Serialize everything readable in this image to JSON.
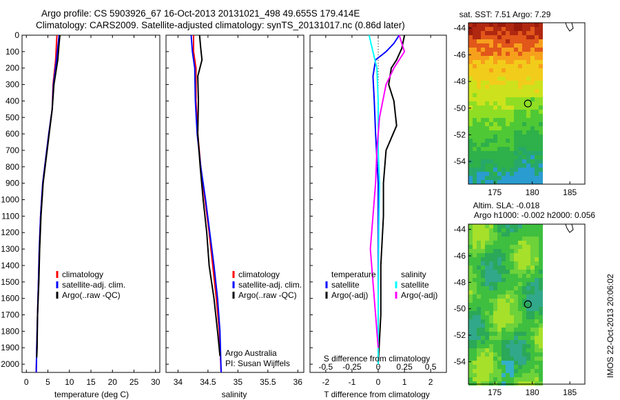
{
  "header": {
    "title_line1": "Argo profile: CS 5903926_67 16-Oct-2013 20131021_498 49.655S 179.414E",
    "title_line2": "Climatology: CARS2009. Satellite-adjusted climatology: synTS_20131017.nc (0.86d later)"
  },
  "chart_data": [
    {
      "type": "line",
      "name": "temperature-panel",
      "xlabel": "temperature (deg C)",
      "ylabel": "",
      "xlim": [
        -1,
        31
      ],
      "ylim": [
        2050,
        0
      ],
      "xticks": [
        "0",
        "5",
        "10",
        "15",
        "20",
        "25",
        "30"
      ],
      "yticks": [
        "0",
        "100",
        "200",
        "300",
        "400",
        "500",
        "600",
        "700",
        "800",
        "900",
        "1000",
        "1100",
        "1200",
        "1300",
        "1400",
        "1500",
        "1600",
        "1700",
        "1800",
        "1900",
        "2000"
      ],
      "legend": [
        {
          "label": "climatology",
          "color": "#ff0000"
        },
        {
          "label": "satellite-adj. clim.",
          "color": "#0000ff"
        },
        {
          "label": "Argo(..raw -QC)",
          "color": "#000000"
        }
      ],
      "series": [
        {
          "name": "climatology",
          "color": "#ff0000",
          "points": [
            [
              7.1,
              0
            ],
            [
              7.0,
              50
            ],
            [
              6.8,
              150
            ],
            [
              6.2,
              300
            ],
            [
              6.0,
              450
            ],
            [
              5.2,
              600
            ],
            [
              4.5,
              750
            ],
            [
              3.8,
              900
            ],
            [
              3.3,
              1100
            ],
            [
              3.0,
              1300
            ],
            [
              2.8,
              1500
            ],
            [
              2.6,
              1700
            ],
            [
              2.4,
              1900
            ],
            [
              2.3,
              2050
            ]
          ]
        },
        {
          "name": "satellite-adj. clim.",
          "color": "#0000ff",
          "points": [
            [
              7.6,
              0
            ],
            [
              7.4,
              50
            ],
            [
              7.0,
              150
            ],
            [
              6.3,
              300
            ],
            [
              6.0,
              450
            ],
            [
              5.2,
              600
            ],
            [
              4.5,
              750
            ],
            [
              3.8,
              900
            ],
            [
              3.3,
              1100
            ],
            [
              3.0,
              1300
            ],
            [
              2.8,
              1500
            ],
            [
              2.6,
              1700
            ],
            [
              2.4,
              1900
            ],
            [
              2.3,
              2050
            ]
          ]
        },
        {
          "name": "Argo(..raw -QC)",
          "color": "#000000",
          "points": [
            [
              7.8,
              0
            ],
            [
              7.6,
              50
            ],
            [
              7.3,
              150
            ],
            [
              6.4,
              300
            ],
            [
              6.0,
              450
            ],
            [
              5.3,
              600
            ],
            [
              4.6,
              750
            ],
            [
              3.9,
              900
            ],
            [
              3.4,
              1100
            ],
            [
              3.1,
              1300
            ],
            [
              2.9,
              1500
            ],
            [
              2.6,
              1700
            ],
            [
              2.5,
              1900
            ],
            [
              2.4,
              1960
            ]
          ]
        }
      ]
    },
    {
      "type": "line",
      "name": "salinity-panel",
      "xlabel": "salinity",
      "xlim": [
        33.8,
        36.1
      ],
      "ylim": [
        2050,
        0
      ],
      "xticks": [
        "34",
        "34.5",
        "35",
        "35.5",
        "36"
      ],
      "legend": [
        {
          "label": "climatology",
          "color": "#ff0000"
        },
        {
          "label": "satellite-adj. clim.",
          "color": "#0000ff"
        },
        {
          "label": "Argo(..raw -QC)",
          "color": "#000000"
        }
      ],
      "annotations": [
        "Argo Australia",
        "PI: Susan Wijffels"
      ],
      "series": [
        {
          "name": "climatology",
          "color": "#ff0000",
          "points": [
            [
              34.26,
              0
            ],
            [
              34.26,
              100
            ],
            [
              34.3,
              200
            ],
            [
              34.3,
              400
            ],
            [
              34.33,
              600
            ],
            [
              34.38,
              800
            ],
            [
              34.45,
              1000
            ],
            [
              34.52,
              1200
            ],
            [
              34.58,
              1400
            ],
            [
              34.64,
              1600
            ],
            [
              34.69,
              1800
            ],
            [
              34.72,
              2050
            ]
          ]
        },
        {
          "name": "satellite-adj. clim.",
          "color": "#0000ff",
          "points": [
            [
              34.22,
              0
            ],
            [
              34.24,
              100
            ],
            [
              34.28,
              200
            ],
            [
              34.29,
              400
            ],
            [
              34.32,
              600
            ],
            [
              34.38,
              800
            ],
            [
              34.46,
              1000
            ],
            [
              34.53,
              1200
            ],
            [
              34.6,
              1400
            ],
            [
              34.66,
              1600
            ],
            [
              34.7,
              1800
            ],
            [
              34.72,
              2050
            ]
          ]
        },
        {
          "name": "Argo(..raw -QC)",
          "color": "#000000",
          "points": [
            [
              34.36,
              0
            ],
            [
              34.38,
              80
            ],
            [
              34.4,
              150
            ],
            [
              34.33,
              250
            ],
            [
              34.34,
              400
            ],
            [
              34.33,
              600
            ],
            [
              34.37,
              800
            ],
            [
              34.42,
              1000
            ],
            [
              34.48,
              1200
            ],
            [
              34.52,
              1400
            ],
            [
              34.6,
              1600
            ],
            [
              34.66,
              1800
            ],
            [
              34.7,
              1950
            ]
          ]
        }
      ]
    },
    {
      "type": "line",
      "name": "difference-panel",
      "xlabel": "T difference from climatology",
      "top_axis_label": "S difference from climatology",
      "xlim": [
        -2.6,
        2.6
      ],
      "ylim": [
        2050,
        0
      ],
      "xticks": [
        "-2",
        "-1",
        "0",
        "1",
        "2"
      ],
      "top_ticks": [
        "-0.5",
        "-0.25",
        "0",
        "0.25",
        "0.5"
      ],
      "legend_temperature": {
        "heading": "temperature",
        "items": [
          {
            "label": "satellite",
            "color": "#0000ff"
          },
          {
            "label": "Argo(-adj)",
            "color": "#000000"
          }
        ]
      },
      "legend_salinity": {
        "heading": "salinity",
        "items": [
          {
            "label": "satellite",
            "color": "#00ffff"
          },
          {
            "label": "Argo(-adj)",
            "color": "#ff00ff"
          }
        ]
      },
      "series": [
        {
          "name": "T satellite",
          "color": "#0000ff",
          "points": [
            [
              0.8,
              0
            ],
            [
              0.6,
              50
            ],
            [
              0.3,
              100
            ],
            [
              -0.1,
              150
            ],
            [
              -0.2,
              250
            ],
            [
              -0.15,
              400
            ],
            [
              -0.1,
              600
            ],
            [
              0,
              900
            ],
            [
              0,
              1200
            ],
            [
              0,
              1600
            ],
            [
              0,
              2000
            ]
          ]
        },
        {
          "name": "T Argo(-adj)",
          "color": "#000000",
          "points": [
            [
              1.0,
              0
            ],
            [
              0.9,
              80
            ],
            [
              0.7,
              150
            ],
            [
              0.5,
              200
            ],
            [
              0.4,
              300
            ],
            [
              0.6,
              400
            ],
            [
              0.7,
              550
            ],
            [
              0.3,
              700
            ],
            [
              0.2,
              900
            ],
            [
              0.2,
              1100
            ],
            [
              0.1,
              1400
            ],
            [
              0.1,
              1700
            ],
            [
              0.0,
              2000
            ]
          ]
        },
        {
          "name": "S satellite",
          "color": "#00ffff",
          "points": [
            [
              -0.35,
              0
            ],
            [
              -0.2,
              100
            ],
            [
              -0.05,
              200
            ],
            [
              0,
              400
            ],
            [
              0,
              700
            ],
            [
              0.05,
              900
            ],
            [
              0.02,
              1200
            ],
            [
              0,
              1600
            ],
            [
              0,
              2000
            ]
          ]
        },
        {
          "name": "S Argo(-adj)",
          "color": "#ff00ff",
          "points": [
            [
              0.8,
              0
            ],
            [
              1.0,
              100
            ],
            [
              0.6,
              200
            ],
            [
              0.3,
              300
            ],
            [
              0.05,
              500
            ],
            [
              -0.05,
              700
            ],
            [
              -0.1,
              900
            ],
            [
              -0.2,
              1100
            ],
            [
              -0.3,
              1300
            ],
            [
              -0.2,
              1500
            ],
            [
              -0.1,
              1700
            ],
            [
              0,
              1900
            ]
          ]
        }
      ]
    },
    {
      "type": "heatmap",
      "name": "sst-map",
      "title": "sat. SST: 7.51  Argo: 7.29",
      "xticks": [
        "175",
        "180",
        "185"
      ],
      "yticks": [
        "-44",
        "-46",
        "-48",
        "-50",
        "-52",
        "-54"
      ],
      "xlim": [
        171.5,
        187
      ],
      "ylim": [
        -55.7,
        -43.6
      ],
      "argo_position": {
        "lon": 179.414,
        "lat": -49.655
      }
    },
    {
      "type": "heatmap",
      "name": "sla-map",
      "title": "Altim. SLA: -0.018",
      "subtitle": "Argo h1000: -0.002 h2000: 0.056",
      "xticks": [
        "175",
        "180",
        "185"
      ],
      "yticks": [
        "-44",
        "-46",
        "-48",
        "-50",
        "-52",
        "-54"
      ],
      "xlim": [
        171.5,
        187
      ],
      "ylim": [
        -55.7,
        -43.6
      ],
      "argo_position": {
        "lon": 179.414,
        "lat": -49.655
      }
    }
  ],
  "footer": {
    "stamp": "IMOS 22-Oct-2013 20:06:02"
  }
}
